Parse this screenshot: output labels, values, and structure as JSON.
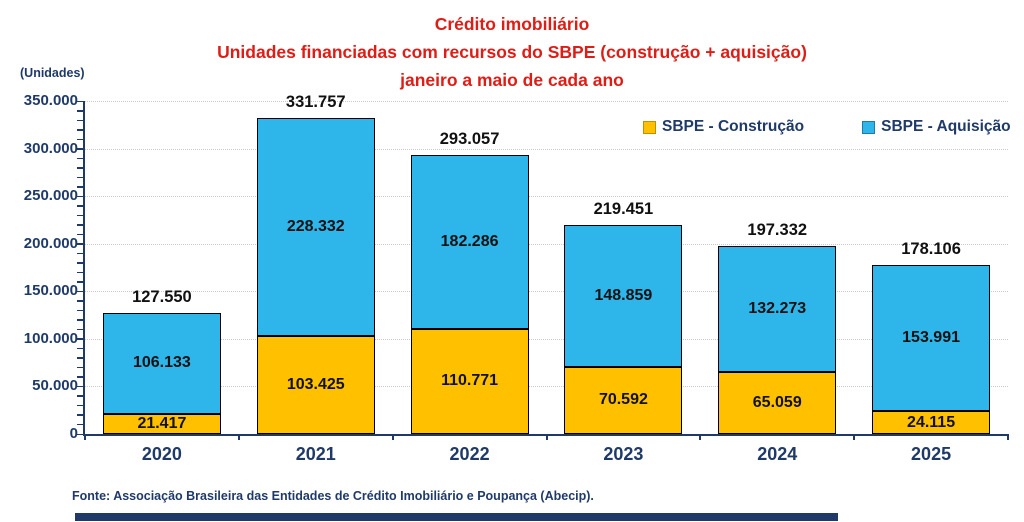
{
  "title": {
    "line1": "Crédito imobiliário",
    "line2": "Unidades financiadas com recursos do SBPE (construção + aquisição)",
    "line3": "janeiro a maio de cada ano"
  },
  "axis_unit_label": "(Unidades)",
  "footer": {
    "source": "Fonte: Associação Brasileira das Entidades de Crédito  Imobiliário e Poupança (Abecip)."
  },
  "colors": {
    "title_red": "#DD1D16",
    "navy": "#1F3A68",
    "construcao_fill": "#FFC000",
    "construcao_border": "#BF9000",
    "aquisicao_fill": "#2EB6EA",
    "aquisicao_border": "#1F7AA8",
    "grid": "#C9C9C9",
    "bar_border": "#000000",
    "value_text": "#111111"
  },
  "chart_data": {
    "type": "bar",
    "stacked": true,
    "title": "Crédito imobiliário — Unidades financiadas com recursos do SBPE (construção + aquisição) — janeiro a maio de cada ano",
    "ylabel": "(Unidades)",
    "categories": [
      "2020",
      "2021",
      "2022",
      "2023",
      "2024",
      "2025"
    ],
    "series": [
      {
        "name": "SBPE - Construção",
        "color_key": "construcao",
        "values": [
          21417,
          103425,
          110771,
          70592,
          65059,
          24115
        ],
        "labels": [
          "21.417",
          "103.425",
          "110.771",
          "70.592",
          "65.059",
          "24.115"
        ]
      },
      {
        "name": "SBPE - Aquisição",
        "color_key": "aquisicao",
        "values": [
          106133,
          228332,
          182286,
          148859,
          132273,
          153991
        ],
        "labels": [
          "106.133",
          "228.332",
          "182.286",
          "148.859",
          "132.273",
          "153.991"
        ]
      }
    ],
    "totals": [
      127550,
      331757,
      293057,
      219451,
      197332,
      178106
    ],
    "total_labels": [
      "127.550",
      "331.757",
      "293.057",
      "219.451",
      "197.332",
      "178.106"
    ],
    "ylim": [
      0,
      350000
    ],
    "y_major_step": 50000,
    "y_minor_step": 10000,
    "y_tick_labels": [
      "0",
      "50.000",
      "100.000",
      "150.000",
      "200.000",
      "250.000",
      "300.000",
      "350.000"
    ],
    "grid": true,
    "legend_position": "top-right"
  }
}
